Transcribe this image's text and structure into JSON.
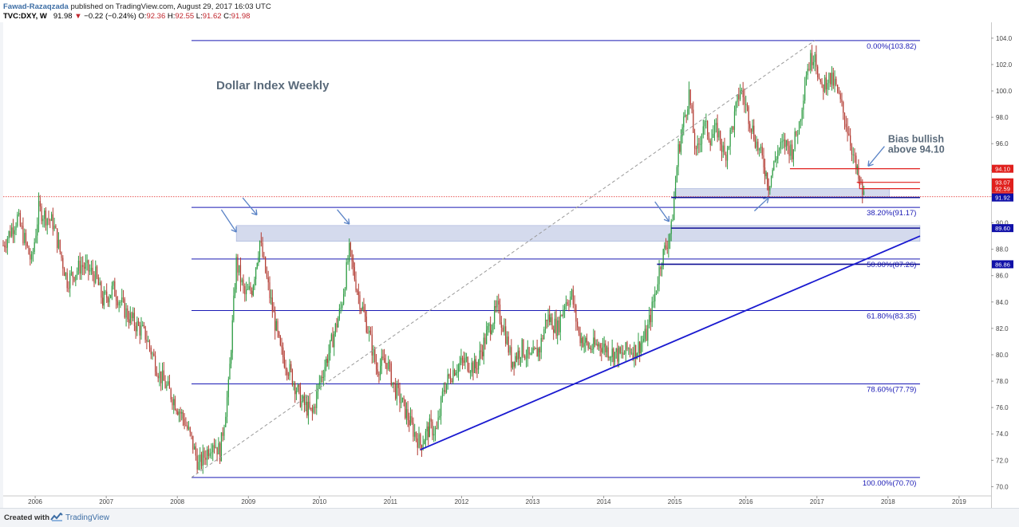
{
  "header": {
    "author": "Fawad-Razaqzada",
    "published": "published on TradingView.com, August 29, 2017 16:03 UTC",
    "symbol": "TVC:DXY, W",
    "last": "91.98",
    "change_arrow": "▼",
    "change": "−0.22 (−0.24%)",
    "open_label": "O:",
    "open": "92.36",
    "high_label": "H:",
    "high": "92.55",
    "low_label": "L:",
    "low": "91.62",
    "close_label": "C:",
    "close": "91.98"
  },
  "footer": {
    "created_with": "Created with",
    "brand": "TradingView",
    "logo_icon": "tradingview-logo-icon"
  },
  "chart_data": {
    "type": "candlestick",
    "title": "Dollar Index Weekly",
    "annotation": "Bias bullish above 94.10",
    "x_ticks": [
      "2006",
      "2007",
      "2008",
      "2009",
      "2010",
      "2011",
      "2012",
      "2013",
      "2014",
      "2015",
      "2016",
      "2017",
      "2018",
      "2019"
    ],
    "x_range": [
      2005.55,
      2019.45
    ],
    "y_ticks": [
      70.0,
      72.0,
      74.0,
      76.0,
      78.0,
      80.0,
      82.0,
      84.0,
      86.0,
      88.0,
      90.0,
      92.0,
      94.0,
      96.0,
      98.0,
      100.0,
      102.0,
      104.0
    ],
    "ylim": [
      69.3,
      105.2
    ],
    "anchor_points": [
      [
        2005.55,
        88.3
      ],
      [
        2005.75,
        90.4
      ],
      [
        2005.95,
        87.0
      ],
      [
        2006.05,
        91.0
      ],
      [
        2006.25,
        90.0
      ],
      [
        2006.45,
        85.6
      ],
      [
        2006.65,
        86.8
      ],
      [
        2006.85,
        86.0
      ],
      [
        2006.95,
        84.1
      ],
      [
        2007.1,
        85.0
      ],
      [
        2007.3,
        83.0
      ],
      [
        2007.55,
        81.5
      ],
      [
        2007.75,
        78.5
      ],
      [
        2007.95,
        76.6
      ],
      [
        2008.1,
        75.0
      ],
      [
        2008.2,
        73.5
      ],
      [
        2008.3,
        71.6
      ],
      [
        2008.4,
        72.5
      ],
      [
        2008.5,
        73.5
      ],
      [
        2008.6,
        72.6
      ],
      [
        2008.72,
        77.5
      ],
      [
        2008.83,
        87.0
      ],
      [
        2008.95,
        84.5
      ],
      [
        2009.05,
        85.0
      ],
      [
        2009.16,
        88.6
      ],
      [
        2009.3,
        84.5
      ],
      [
        2009.45,
        80.3
      ],
      [
        2009.6,
        78.5
      ],
      [
        2009.75,
        76.4
      ],
      [
        2009.9,
        75.5
      ],
      [
        2010.0,
        77.9
      ],
      [
        2010.15,
        80.5
      ],
      [
        2010.3,
        83.5
      ],
      [
        2010.42,
        87.8
      ],
      [
        2010.55,
        84.5
      ],
      [
        2010.68,
        82.0
      ],
      [
        2010.8,
        79.0
      ],
      [
        2010.95,
        79.5
      ],
      [
        2011.05,
        77.5
      ],
      [
        2011.15,
        76.5
      ],
      [
        2011.3,
        74.5
      ],
      [
        2011.42,
        73.2
      ],
      [
        2011.55,
        74.5
      ],
      [
        2011.65,
        74.2
      ],
      [
        2011.75,
        77.5
      ],
      [
        2011.9,
        79.0
      ],
      [
        2012.05,
        79.5
      ],
      [
        2012.2,
        79.0
      ],
      [
        2012.35,
        81.5
      ],
      [
        2012.5,
        83.5
      ],
      [
        2012.6,
        82.0
      ],
      [
        2012.7,
        79.5
      ],
      [
        2012.85,
        80.5
      ],
      [
        2012.97,
        79.6
      ],
      [
        2013.1,
        80.5
      ],
      [
        2013.2,
        82.9
      ],
      [
        2013.35,
        82.0
      ],
      [
        2013.45,
        84.0
      ],
      [
        2013.55,
        84.5
      ],
      [
        2013.65,
        81.5
      ],
      [
        2013.8,
        80.5
      ],
      [
        2013.95,
        80.8
      ],
      [
        2014.1,
        80.2
      ],
      [
        2014.25,
        79.9
      ],
      [
        2014.35,
        80.5
      ],
      [
        2014.45,
        80.3
      ],
      [
        2014.6,
        81.5
      ],
      [
        2014.7,
        84.0
      ],
      [
        2014.8,
        87.0
      ],
      [
        2014.95,
        89.5
      ],
      [
        2015.05,
        95.5
      ],
      [
        2015.2,
        99.8
      ],
      [
        2015.3,
        95.0
      ],
      [
        2015.4,
        97.5
      ],
      [
        2015.5,
        96.5
      ],
      [
        2015.6,
        97.0
      ],
      [
        2015.7,
        95.0
      ],
      [
        2015.82,
        97.5
      ],
      [
        2015.92,
        100.2
      ],
      [
        2016.02,
        98.5
      ],
      [
        2016.15,
        96.0
      ],
      [
        2016.25,
        94.5
      ],
      [
        2016.32,
        92.9
      ],
      [
        2016.45,
        95.5
      ],
      [
        2016.55,
        96.0
      ],
      [
        2016.65,
        95.5
      ],
      [
        2016.75,
        97.5
      ],
      [
        2016.85,
        101.5
      ],
      [
        2016.97,
        103.1
      ],
      [
        2017.05,
        100.0
      ],
      [
        2017.15,
        101.0
      ],
      [
        2017.25,
        100.5
      ],
      [
        2017.35,
        98.7
      ],
      [
        2017.45,
        96.8
      ],
      [
        2017.55,
        94.0
      ],
      [
        2017.62,
        92.6
      ],
      [
        2017.66,
        91.98
      ]
    ],
    "horizontal_levels": [
      {
        "price": 103.82,
        "label": "0.00%(103.82)",
        "color": "#1a1ab5"
      },
      {
        "price": 91.17,
        "label": "38.20%(91.17)",
        "color": "#1a1ab5"
      },
      {
        "price": 87.26,
        "label": "50.00%(87.26)",
        "color": "#1a1ab5"
      },
      {
        "price": 83.35,
        "label": "61.80%(83.35)",
        "color": "#1a1ab5"
      },
      {
        "price": 77.79,
        "label": "78.60%(77.79)",
        "color": "#1a1ab5"
      },
      {
        "price": 70.7,
        "label": "100.00%(70.70)",
        "color": "#1a1ab5"
      }
    ],
    "price_tags": [
      {
        "price": 94.1,
        "label": "94.10",
        "color": "#e0201d"
      },
      {
        "price": 93.07,
        "label": "93.07",
        "color": "#e0201d"
      },
      {
        "price": 92.59,
        "label": "92.59",
        "color": "#e0201d"
      },
      {
        "price": 91.98,
        "label": "91.98",
        "color": "#e0201d"
      },
      {
        "price": 91.92,
        "label": "91.92",
        "color": "#1111a8"
      },
      {
        "price": 89.6,
        "label": "89.60",
        "color": "#1111a8"
      },
      {
        "price": 86.86,
        "label": "86.86",
        "color": "#1111a8"
      }
    ],
    "red_lines": [
      {
        "x1": 2016.62,
        "x2": 2018.45,
        "price": 94.1
      },
      {
        "x1": 2017.56,
        "x2": 2018.45,
        "price": 93.07
      },
      {
        "x1": 2017.6,
        "x2": 2018.45,
        "price": 92.59
      }
    ],
    "dark_lines": [
      {
        "x1": 2014.95,
        "x2": 2018.45,
        "price": 91.92
      },
      {
        "x1": 2014.95,
        "x2": 2018.45,
        "price": 89.6
      },
      {
        "x1": 2014.75,
        "x2": 2018.45,
        "price": 86.86
      }
    ],
    "shaded_zones": [
      {
        "x1": 2008.83,
        "x2": 2018.45,
        "y1": 88.6,
        "y2": 89.8
      },
      {
        "x1": 2015.0,
        "x2": 2018.02,
        "y1": 91.9,
        "y2": 92.6
      }
    ],
    "trendline": {
      "x1": 2011.42,
      "y1": 72.8,
      "x2": 2018.45,
      "y2": 89.0
    },
    "dashed_diagonal": {
      "x1": 2008.2,
      "y1": 70.7,
      "x2": 2016.97,
      "y2": 103.82
    },
    "current_price_line": 91.98,
    "colors": {
      "up": "#2e9c43",
      "down": "#b23b32",
      "fib": "#1a1ab5",
      "red": "#e0201d",
      "zone": "rgba(120,140,200,0.32)",
      "arrow": "#5a83c6"
    }
  }
}
